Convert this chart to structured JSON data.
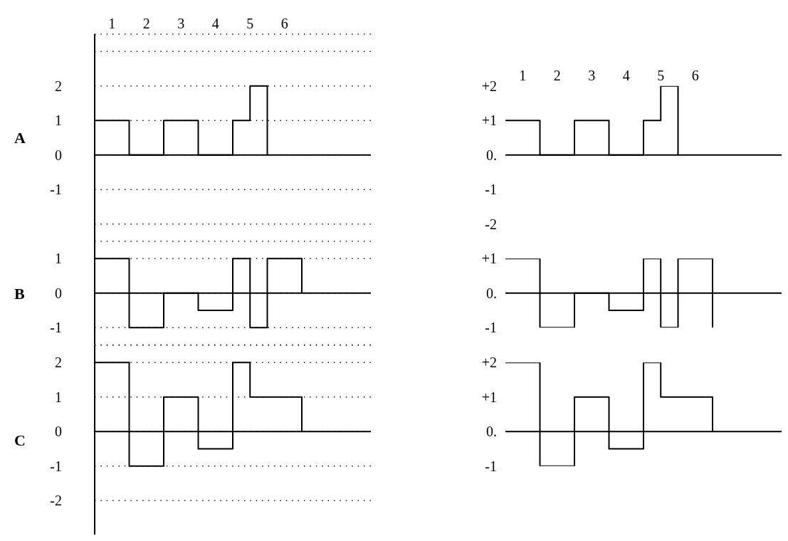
{
  "chart_data": [
    {
      "type": "step",
      "ylabel": "A",
      "x": [
        0,
        1,
        2,
        3,
        4,
        4.5,
        5
      ],
      "xlim": [
        0,
        8
      ],
      "xticks": [
        {
          "value": 0.5,
          "label": "1"
        },
        {
          "value": 1.5,
          "label": "2"
        },
        {
          "value": 2.5,
          "label": "3"
        },
        {
          "value": 3.5,
          "label": "4"
        },
        {
          "value": 4.5,
          "label": "5"
        },
        {
          "value": 5.5,
          "label": "6"
        }
      ],
      "ylim": [
        -2.5,
        3.5
      ],
      "yticks": [
        {
          "value": 3,
          "label": null
        },
        2,
        1,
        0,
        -1,
        {
          "value": -2,
          "label": null
        }
      ],
      "grid": "y",
      "series": [
        {
          "color": "#000000",
          "values": [
            1,
            0,
            1,
            0,
            1,
            2,
            0
          ]
        }
      ],
      "ref_lines": [
        {
          "axis": "y",
          "value": 0
        }
      ]
    },
    {
      "type": "step",
      "ylabel": "B",
      "x": [
        0,
        1,
        2,
        3,
        4,
        4.5,
        5,
        6
      ],
      "xlim": [
        0,
        8
      ],
      "ylim": [
        -1.5,
        1.5
      ],
      "yticks": [
        1,
        0,
        -1
      ],
      "grid": "y",
      "tick_labels": "y",
      "series": [
        {
          "color": "#000000",
          "values": [
            1,
            -1,
            0,
            -0.5,
            1,
            -1,
            1,
            0
          ]
        }
      ],
      "ref_lines": [
        {
          "axis": "y",
          "value": 0
        }
      ]
    },
    {
      "type": "step",
      "ylabel": "C",
      "x": [
        0,
        1,
        2,
        3,
        4,
        4.5,
        6
      ],
      "xlim": [
        0,
        8
      ],
      "ylim": [
        -3,
        2.5
      ],
      "yticks": [
        2,
        1,
        0,
        -1,
        -2
      ],
      "grid": "y",
      "tick_labels": "y",
      "series": [
        {
          "color": "#000000",
          "values": [
            2,
            -1,
            1,
            -0.5,
            2,
            1,
            0
          ]
        }
      ],
      "ref_lines": [
        {
          "axis": "y",
          "value": 0
        }
      ]
    },
    {
      "type": "step",
      "x": [
        0,
        1,
        2,
        3,
        4,
        4.5,
        5
      ],
      "xlim": [
        0,
        8
      ],
      "xticks": [
        {
          "value": 0.5,
          "label": "1"
        },
        {
          "value": 1.5,
          "label": "2"
        },
        {
          "value": 2.5,
          "label": "3"
        },
        {
          "value": 3.5,
          "label": "4"
        },
        {
          "value": 4.5,
          "label": "5"
        },
        {
          "value": 5.5,
          "label": "6"
        }
      ],
      "ylim": [
        -2,
        2
      ],
      "yticks": [
        {
          "value": 2,
          "label": "+2"
        },
        {
          "value": 1,
          "label": "+1"
        },
        {
          "value": 0,
          "label": "0."
        },
        -1,
        -2
      ],
      "series": [
        {
          "color": "#000000",
          "values": [
            1,
            0,
            1,
            0,
            1,
            2,
            0
          ]
        }
      ],
      "ref_lines": [
        {
          "axis": "y",
          "value": 0
        }
      ]
    },
    {
      "type": "step",
      "x": [
        0,
        1,
        2,
        3,
        4,
        4.5,
        5,
        6
      ],
      "xlim": [
        0,
        8
      ],
      "ylim": [
        -1,
        1
      ],
      "yticks": [
        {
          "value": 1,
          "label": "+1"
        },
        {
          "value": 0,
          "label": "0."
        },
        -1
      ],
      "tick_labels": "y",
      "series": [
        {
          "color": "#000000",
          "values": [
            1,
            -1,
            0,
            -0.5,
            1,
            -1,
            1,
            -1
          ]
        }
      ],
      "ref_lines": [
        {
          "axis": "y",
          "value": 0
        }
      ]
    },
    {
      "type": "step",
      "x": [
        0,
        1,
        2,
        3,
        4,
        4.5,
        6
      ],
      "xlim": [
        0,
        8
      ],
      "ylim": [
        -1,
        2
      ],
      "yticks": [
        {
          "value": 2,
          "label": "+2"
        },
        {
          "value": 1,
          "label": "+1"
        },
        {
          "value": 0,
          "label": "0."
        },
        -1
      ],
      "tick_labels": "y",
      "series": [
        {
          "color": "#000000",
          "values": [
            2,
            -1,
            1,
            -0.5,
            2,
            1,
            0
          ]
        }
      ],
      "ref_lines": [
        {
          "axis": "y",
          "value": 0
        }
      ]
    }
  ]
}
